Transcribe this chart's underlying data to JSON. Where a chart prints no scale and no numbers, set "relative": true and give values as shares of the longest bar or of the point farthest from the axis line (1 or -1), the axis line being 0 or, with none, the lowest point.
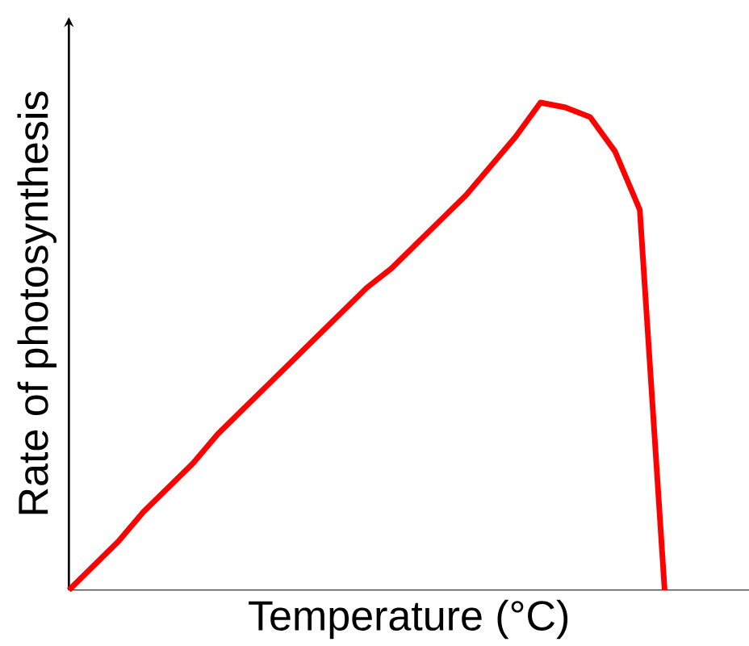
{
  "chart_data": {
    "type": "line",
    "relative": true,
    "xlabel": "Temperature (°C)",
    "ylabel": "Rate of photosynthesis",
    "categories": [
      null,
      null,
      null,
      null,
      null,
      null,
      null,
      null,
      null,
      null,
      null,
      null,
      null,
      null,
      null,
      null,
      null,
      null,
      null,
      null,
      null,
      null,
      null,
      null,
      null,
      null,
      null,
      null
    ],
    "series": [
      {
        "color": "#ff0000",
        "values": [
          0,
          0.05,
          0.1,
          0.16,
          0.21,
          0.26,
          0.32,
          0.37,
          0.42,
          0.47,
          0.52,
          0.57,
          0.62,
          0.66,
          0.71,
          0.76,
          0.81,
          0.87,
          0.93,
          1,
          0.99,
          0.97,
          0.9,
          0.78,
          0,
          null,
          null,
          null
        ]
      }
    ],
    "marker": "none",
    "line_style": "solid",
    "grid": false
  }
}
